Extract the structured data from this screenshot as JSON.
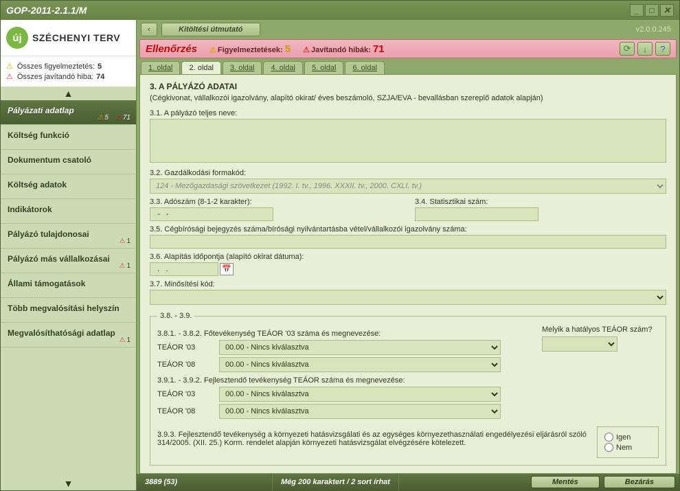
{
  "window": {
    "title": "GOP-2011-2.1.1/M"
  },
  "logo": {
    "badge": "új",
    "text": "SZÉCHENYI TERV"
  },
  "summary": {
    "warn_label": "Összes figyelmeztetés:",
    "warn_count": "5",
    "err_label": "Összes javítandó hiba:",
    "err_count": "74"
  },
  "nav": [
    {
      "label": "Pályázati adatlap",
      "active": true,
      "warn": "5",
      "err": "71"
    },
    {
      "label": "Költség funkció"
    },
    {
      "label": "Dokumentum csatoló"
    },
    {
      "label": "Költség adatok"
    },
    {
      "label": "Indikátorok"
    },
    {
      "label": "Pályázó tulajdonosai",
      "err": "1"
    },
    {
      "label": "Pályázó más vállalkozásai",
      "err": "1"
    },
    {
      "label": "Állami támogatások"
    },
    {
      "label": "Több megvalósítási helyszín"
    },
    {
      "label": "Megvalósíthatósági adatlap",
      "err": "1"
    }
  ],
  "toolbar": {
    "guide": "Kitöltési útmutató",
    "version": "v2.0.0.245"
  },
  "alert": {
    "title": "Ellenőrzés",
    "warn_label": "Figyelmeztetések:",
    "warn_count": "5",
    "err_label": "Javítandó hibák:",
    "err_count": "71"
  },
  "tabs": [
    "1. oldal",
    "2. oldal",
    "3. oldal",
    "4. oldal",
    "5. oldal",
    "6. oldal"
  ],
  "active_tab": 1,
  "section": {
    "heading": "3. A PÁLYÁZÓ ADATAI",
    "subheading": "(Cégkivonat, vállalkozói igazolvány, alapító okirat/ éves beszámoló, SZJA/EVA - bevallásban szereplő adatok alapján)",
    "f31_label": "3.1. A pályázó teljes neve:",
    "f32_label": "3.2. Gazdálkodási formakód:",
    "f32_value": "124 - Mezőgazdasági szövetkezet (1992. I. tv., 1996. XXXII. tv., 2000. CXLI. tv.)",
    "f33_label": "3.3. Adószám (8-1-2 karakter):",
    "f33_value": "  -   -",
    "f34_label": "3.4. Statisztikai szám:",
    "f35_label": "3.5. Cégbírósági bejegyzés száma/bírósági nyilvántartásba vétel/vállalkozói igazolvány száma:",
    "f36_label": "3.6. Alapítás időpontja (alapító okirat dátuma):",
    "f36_value": "  .   .",
    "f37_label": "3.7. Minősítési kód:",
    "fs_legend": "3.8. - 3.9.",
    "f381_label": "3.8.1. - 3.8.2. Főtevékenység TEÁOR '03 száma és megnevezése:",
    "f391_label": "3.9.1. - 3.9.2. Fejlesztendő tevékenység TEÁOR száma és megnevezése:",
    "teaor03": "TEÁOR '03",
    "teaor08": "TEÁOR '08",
    "teaor_none": "00.00 - Nincs kiválasztva",
    "side_q": "Melyik a hatályos TEÁOR szám?",
    "f393": "3.9.3. Fejlesztendő tevékenység a környezeti hatásvizsgálati és az egységes környezethasználati engedélyezési eljárásról szóló 314/2005. (XII. 25.) Korm. rendelet alapján környezeti hatásvizsgálat elvégzésére kötelezett.",
    "yes": "Igen",
    "no": "Nem"
  },
  "status": {
    "pos": "3889 (53)",
    "hint": "Még 200 karaktert / 2 sort írhat",
    "save": "Mentés",
    "close": "Bezárás"
  }
}
